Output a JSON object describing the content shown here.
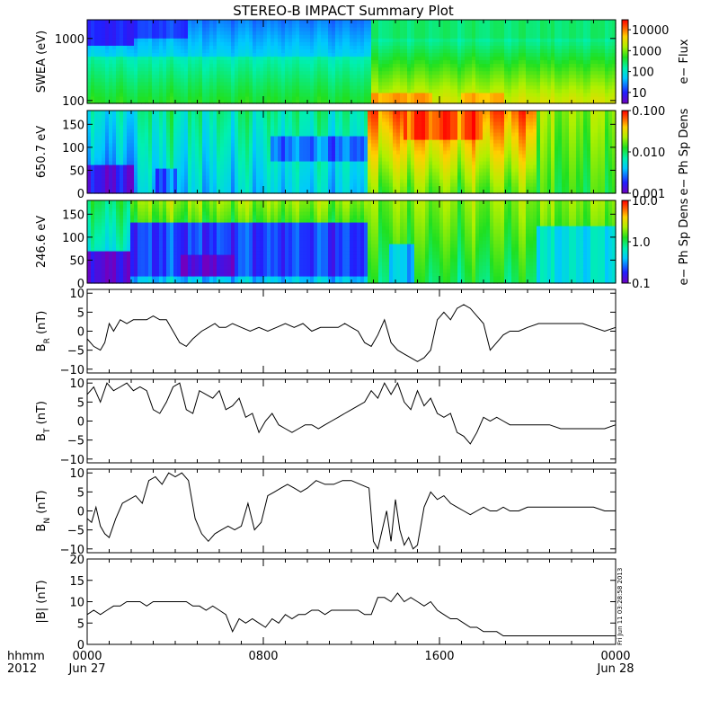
{
  "title": "STEREO-B IMPACT Summary Plot",
  "stamp": "Fri Jun 11 03:28:58 2013",
  "chart_data": [
    {
      "id": "swea",
      "type": "heatmap",
      "ylabel": "SWEA (eV)",
      "yscale": "log",
      "ylim": [
        90,
        2000
      ],
      "yticks": [
        {
          "v": 100,
          "t": "100"
        },
        {
          "v": 1000,
          "t": "1000"
        }
      ],
      "colorbar": {
        "label": "e− Flux",
        "scale": "log",
        "range": [
          3,
          30000
        ],
        "ticks": [
          {
            "v": 10,
            "t": "10"
          },
          {
            "v": 100,
            "t": "100"
          },
          {
            "v": 1000,
            "t": "1000"
          },
          {
            "v": 10000,
            "t": "10000"
          }
        ]
      }
    },
    {
      "id": "pad650",
      "type": "heatmap",
      "ylabel": "650.7 eV",
      "ylim": [
        0,
        180
      ],
      "yticks": [
        {
          "v": 0,
          "t": "0"
        },
        {
          "v": 50,
          "t": "50"
        },
        {
          "v": 100,
          "t": "100"
        },
        {
          "v": 150,
          "t": "150"
        }
      ],
      "colorbar": {
        "label": "e− Ph Sp Dens",
        "scale": "log",
        "range": [
          0.001,
          0.1
        ],
        "ticks": [
          {
            "v": 0.001,
            "t": "0.001"
          },
          {
            "v": 0.01,
            "t": "0.010"
          },
          {
            "v": 0.1,
            "t": "0.100"
          }
        ]
      }
    },
    {
      "id": "pad246",
      "type": "heatmap",
      "ylabel": "246.6 eV",
      "ylim": [
        0,
        180
      ],
      "yticks": [
        {
          "v": 0,
          "t": "0"
        },
        {
          "v": 50,
          "t": "50"
        },
        {
          "v": 100,
          "t": "100"
        },
        {
          "v": 150,
          "t": "150"
        }
      ],
      "colorbar": {
        "label": "e− Ph Sp Dens",
        "scale": "log",
        "range": [
          0.1,
          10
        ],
        "ticks": [
          {
            "v": 0.1,
            "t": "0.1"
          },
          {
            "v": 1,
            "t": "1.0"
          },
          {
            "v": 10,
            "t": "10.0"
          }
        ]
      }
    },
    {
      "id": "br",
      "type": "line",
      "ylabel": "B",
      "ylabel_sub": "R",
      "ylabel_unit": " (nT)",
      "ylim": [
        -11,
        11
      ],
      "yticks": [
        {
          "v": -10,
          "t": "−10"
        },
        {
          "v": -5,
          "t": "−5"
        },
        {
          "v": 0,
          "t": "0"
        },
        {
          "v": 5,
          "t": "5"
        },
        {
          "v": 10,
          "t": "10"
        }
      ],
      "x": [
        0,
        0.3,
        0.6,
        0.8,
        1.0,
        1.2,
        1.5,
        1.8,
        2.1,
        2.4,
        2.7,
        3.0,
        3.3,
        3.6,
        3.9,
        4.2,
        4.5,
        4.8,
        5.0,
        5.2,
        5.5,
        5.8,
        6.0,
        6.3,
        6.6,
        7.0,
        7.4,
        7.8,
        8.2,
        8.6,
        9.0,
        9.4,
        9.8,
        10.2,
        10.6,
        11.0,
        11.4,
        11.7,
        12.0,
        12.3,
        12.6,
        12.9,
        13.2,
        13.5,
        13.8,
        14.1,
        14.4,
        14.7,
        15.0,
        15.3,
        15.6,
        15.9,
        16.2,
        16.5,
        16.8,
        17.1,
        17.4,
        17.7,
        18.0,
        18.3,
        18.6,
        18.9,
        19.2,
        19.6,
        20.0,
        20.5,
        21.0,
        21.5,
        22.0,
        22.5,
        23.0,
        23.5,
        24.0
      ],
      "y": [
        -2,
        -4,
        -5,
        -3,
        2,
        0,
        3,
        2,
        3,
        3,
        3,
        4,
        3,
        3,
        0,
        -3,
        -4,
        -2,
        -1,
        0,
        1,
        2,
        1,
        1,
        2,
        1,
        0,
        1,
        0,
        1,
        2,
        1,
        2,
        0,
        1,
        1,
        1,
        2,
        1,
        0,
        -3,
        -4,
        -1,
        3,
        -3,
        -5,
        -6,
        -7,
        -8,
        -7,
        -5,
        3,
        5,
        3,
        6,
        7,
        6,
        4,
        2,
        -5,
        -3,
        -1,
        0,
        0,
        1,
        2,
        2,
        2,
        2,
        2,
        1,
        0,
        1
      ]
    },
    {
      "id": "bt",
      "type": "line",
      "ylabel": "B",
      "ylabel_sub": "T",
      "ylabel_unit": " (nT)",
      "ylim": [
        -11,
        11
      ],
      "yticks": [
        {
          "v": -10,
          "t": "−10"
        },
        {
          "v": -5,
          "t": "−5"
        },
        {
          "v": 0,
          "t": "0"
        },
        {
          "v": 5,
          "t": "5"
        },
        {
          "v": 10,
          "t": "10"
        }
      ],
      "x": [
        0,
        0.3,
        0.6,
        0.9,
        1.2,
        1.5,
        1.8,
        2.1,
        2.4,
        2.7,
        3.0,
        3.3,
        3.6,
        3.9,
        4.2,
        4.5,
        4.8,
        5.1,
        5.4,
        5.7,
        6.0,
        6.3,
        6.6,
        6.9,
        7.2,
        7.5,
        7.8,
        8.1,
        8.4,
        8.7,
        9.0,
        9.3,
        9.6,
        9.9,
        10.2,
        10.5,
        10.8,
        11.1,
        11.4,
        11.7,
        12.0,
        12.3,
        12.6,
        12.9,
        13.2,
        13.5,
        13.8,
        14.1,
        14.4,
        14.7,
        15.0,
        15.3,
        15.6,
        15.9,
        16.2,
        16.5,
        16.8,
        17.1,
        17.4,
        17.7,
        18.0,
        18.3,
        18.6,
        18.9,
        19.2,
        19.6,
        20.0,
        20.5,
        21.0,
        21.5,
        22.0,
        22.5,
        23.0,
        23.5,
        24.0
      ],
      "y": [
        7,
        9,
        5,
        10,
        8,
        9,
        10,
        8,
        9,
        8,
        3,
        2,
        5,
        9,
        10,
        3,
        2,
        8,
        7,
        6,
        8,
        3,
        4,
        6,
        1,
        2,
        -3,
        0,
        2,
        -1,
        -2,
        -3,
        -2,
        -1,
        -1,
        -2,
        -1,
        0,
        1,
        2,
        3,
        4,
        5,
        8,
        6,
        10,
        7,
        10,
        5,
        3,
        8,
        4,
        6,
        2,
        1,
        2,
        -3,
        -4,
        -6,
        -3,
        1,
        0,
        1,
        0,
        -1,
        -1,
        -1,
        -1,
        -1,
        -2,
        -2,
        -2,
        -2,
        -2,
        -1
      ]
    },
    {
      "id": "bn",
      "type": "line",
      "ylabel": "B",
      "ylabel_sub": "N",
      "ylabel_unit": " (nT)",
      "ylim": [
        -11,
        11
      ],
      "yticks": [
        {
          "v": -10,
          "t": "−10"
        },
        {
          "v": -5,
          "t": "−5"
        },
        {
          "v": 0,
          "t": "0"
        },
        {
          "v": 5,
          "t": "5"
        },
        {
          "v": 10,
          "t": "10"
        }
      ],
      "x": [
        0,
        0.2,
        0.4,
        0.6,
        0.8,
        1.0,
        1.3,
        1.6,
        1.9,
        2.2,
        2.5,
        2.8,
        3.1,
        3.4,
        3.7,
        4.0,
        4.3,
        4.6,
        4.9,
        5.2,
        5.5,
        5.8,
        6.1,
        6.4,
        6.7,
        7.0,
        7.3,
        7.6,
        7.9,
        8.2,
        8.5,
        8.8,
        9.1,
        9.4,
        9.7,
        10.0,
        10.4,
        10.8,
        11.2,
        11.6,
        12.0,
        12.4,
        12.8,
        13.0,
        13.2,
        13.4,
        13.6,
        13.8,
        14.0,
        14.2,
        14.4,
        14.6,
        14.8,
        15.0,
        15.3,
        15.6,
        15.9,
        16.2,
        16.5,
        16.8,
        17.1,
        17.4,
        17.7,
        18.0,
        18.3,
        18.6,
        18.9,
        19.2,
        19.6,
        20.0,
        20.5,
        21.0,
        21.5,
        22.0,
        22.5,
        23.0,
        23.5,
        24.0
      ],
      "y": [
        -2,
        -3,
        1,
        -4,
        -6,
        -7,
        -2,
        2,
        3,
        4,
        2,
        8,
        9,
        7,
        10,
        9,
        10,
        8,
        -2,
        -6,
        -8,
        -6,
        -5,
        -4,
        -5,
        -4,
        2,
        -5,
        -3,
        4,
        5,
        6,
        7,
        6,
        5,
        6,
        8,
        7,
        7,
        8,
        8,
        7,
        6,
        -8,
        -10,
        -5,
        0,
        -8,
        3,
        -5,
        -9,
        -7,
        -10,
        -9,
        1,
        5,
        3,
        4,
        2,
        1,
        0,
        -1,
        0,
        1,
        0,
        0,
        1,
        0,
        0,
        1,
        1,
        1,
        1,
        1,
        1,
        1,
        0,
        0
      ]
    },
    {
      "id": "bmag",
      "type": "line",
      "ylabel": "|B| (nT)",
      "ylim": [
        0,
        20
      ],
      "yticks": [
        {
          "v": 0,
          "t": "0"
        },
        {
          "v": 5,
          "t": "5"
        },
        {
          "v": 10,
          "t": "10"
        },
        {
          "v": 15,
          "t": "15"
        },
        {
          "v": 20,
          "t": "20"
        }
      ],
      "x": [
        0,
        0.3,
        0.6,
        0.9,
        1.2,
        1.5,
        1.8,
        2.1,
        2.4,
        2.7,
        3.0,
        3.3,
        3.6,
        3.9,
        4.2,
        4.5,
        4.8,
        5.1,
        5.4,
        5.7,
        6.0,
        6.3,
        6.6,
        6.9,
        7.2,
        7.5,
        7.8,
        8.1,
        8.4,
        8.7,
        9.0,
        9.3,
        9.6,
        9.9,
        10.2,
        10.5,
        10.8,
        11.1,
        11.4,
        11.7,
        12.0,
        12.3,
        12.6,
        12.9,
        13.2,
        13.5,
        13.8,
        14.1,
        14.4,
        14.7,
        15.0,
        15.3,
        15.6,
        15.9,
        16.2,
        16.5,
        16.8,
        17.1,
        17.4,
        17.7,
        18.0,
        18.3,
        18.6,
        18.9,
        19.2,
        19.6,
        20.0,
        20.5,
        21.0,
        21.5,
        22.0,
        22.5,
        23.0,
        23.5,
        24.0
      ],
      "y": [
        7,
        8,
        7,
        8,
        9,
        9,
        10,
        10,
        10,
        9,
        10,
        10,
        10,
        10,
        10,
        10,
        9,
        9,
        8,
        9,
        8,
        7,
        3,
        6,
        5,
        6,
        5,
        4,
        6,
        5,
        7,
        6,
        7,
        7,
        8,
        8,
        7,
        8,
        8,
        8,
        8,
        8,
        7,
        7,
        11,
        11,
        10,
        12,
        10,
        11,
        10,
        9,
        10,
        8,
        7,
        6,
        6,
        5,
        4,
        4,
        3,
        3,
        3,
        2,
        2,
        2,
        2,
        2,
        2,
        2,
        2,
        2,
        2,
        2,
        2
      ]
    }
  ],
  "xaxis": {
    "range_hours": [
      0,
      24
    ],
    "ticks": [
      {
        "v": 0,
        "t": "0000"
      },
      {
        "v": 8,
        "t": "0800"
      },
      {
        "v": 16,
        "t": "1600"
      },
      {
        "v": 24,
        "t": "0000"
      }
    ],
    "row2": [
      {
        "v": 0,
        "t": "Jun 27"
      },
      {
        "v": 24,
        "t": "Jun 28"
      }
    ],
    "corner1": "hhmm",
    "corner2": "2012"
  }
}
